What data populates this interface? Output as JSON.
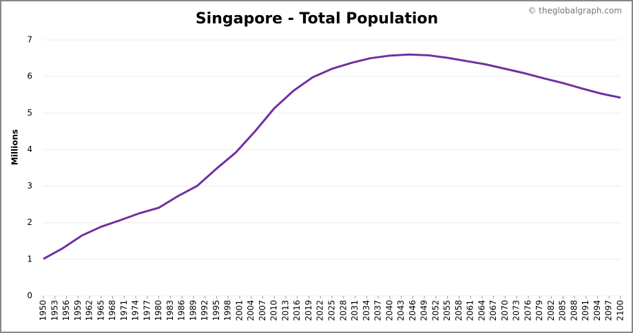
{
  "chart_data": {
    "type": "line",
    "title": "Singapore - Total Population",
    "watermark": "© theglobalgraph.com",
    "y_label": "Millions",
    "x": [
      1950,
      1955,
      1960,
      1965,
      1970,
      1975,
      1980,
      1985,
      1990,
      1995,
      2000,
      2005,
      2010,
      2015,
      2020,
      2025,
      2030,
      2035,
      2040,
      2045,
      2050,
      2055,
      2060,
      2065,
      2070,
      2075,
      2080,
      2085,
      2090,
      2095,
      2100
    ],
    "series": [
      {
        "name": "Total Population",
        "color": "#7030a0",
        "values": [
          1.01,
          1.3,
          1.65,
          1.89,
          2.07,
          2.26,
          2.41,
          2.73,
          3.01,
          3.48,
          3.92,
          4.5,
          5.13,
          5.61,
          5.98,
          6.21,
          6.37,
          6.5,
          6.57,
          6.6,
          6.58,
          6.51,
          6.42,
          6.33,
          6.21,
          6.09,
          5.95,
          5.82,
          5.67,
          5.53,
          5.42
        ]
      }
    ],
    "xlim": [
      1950,
      2100
    ],
    "xticks": [
      1950,
      1953,
      1956,
      1959,
      1962,
      1965,
      1968,
      1971,
      1974,
      1977,
      1980,
      1983,
      1986,
      1989,
      1992,
      1995,
      1998,
      2001,
      2004,
      2007,
      2010,
      2013,
      2016,
      2019,
      2022,
      2025,
      2028,
      2031,
      2034,
      2037,
      2040,
      2043,
      2046,
      2049,
      2052,
      2055,
      2058,
      2061,
      2064,
      2067,
      2070,
      2073,
      2076,
      2079,
      2082,
      2085,
      2088,
      2091,
      2094,
      2097,
      2100
    ],
    "ylim": [
      0,
      7
    ],
    "yticks": [
      0,
      1,
      2,
      3,
      4,
      5,
      6,
      7
    ],
    "grid": true
  }
}
